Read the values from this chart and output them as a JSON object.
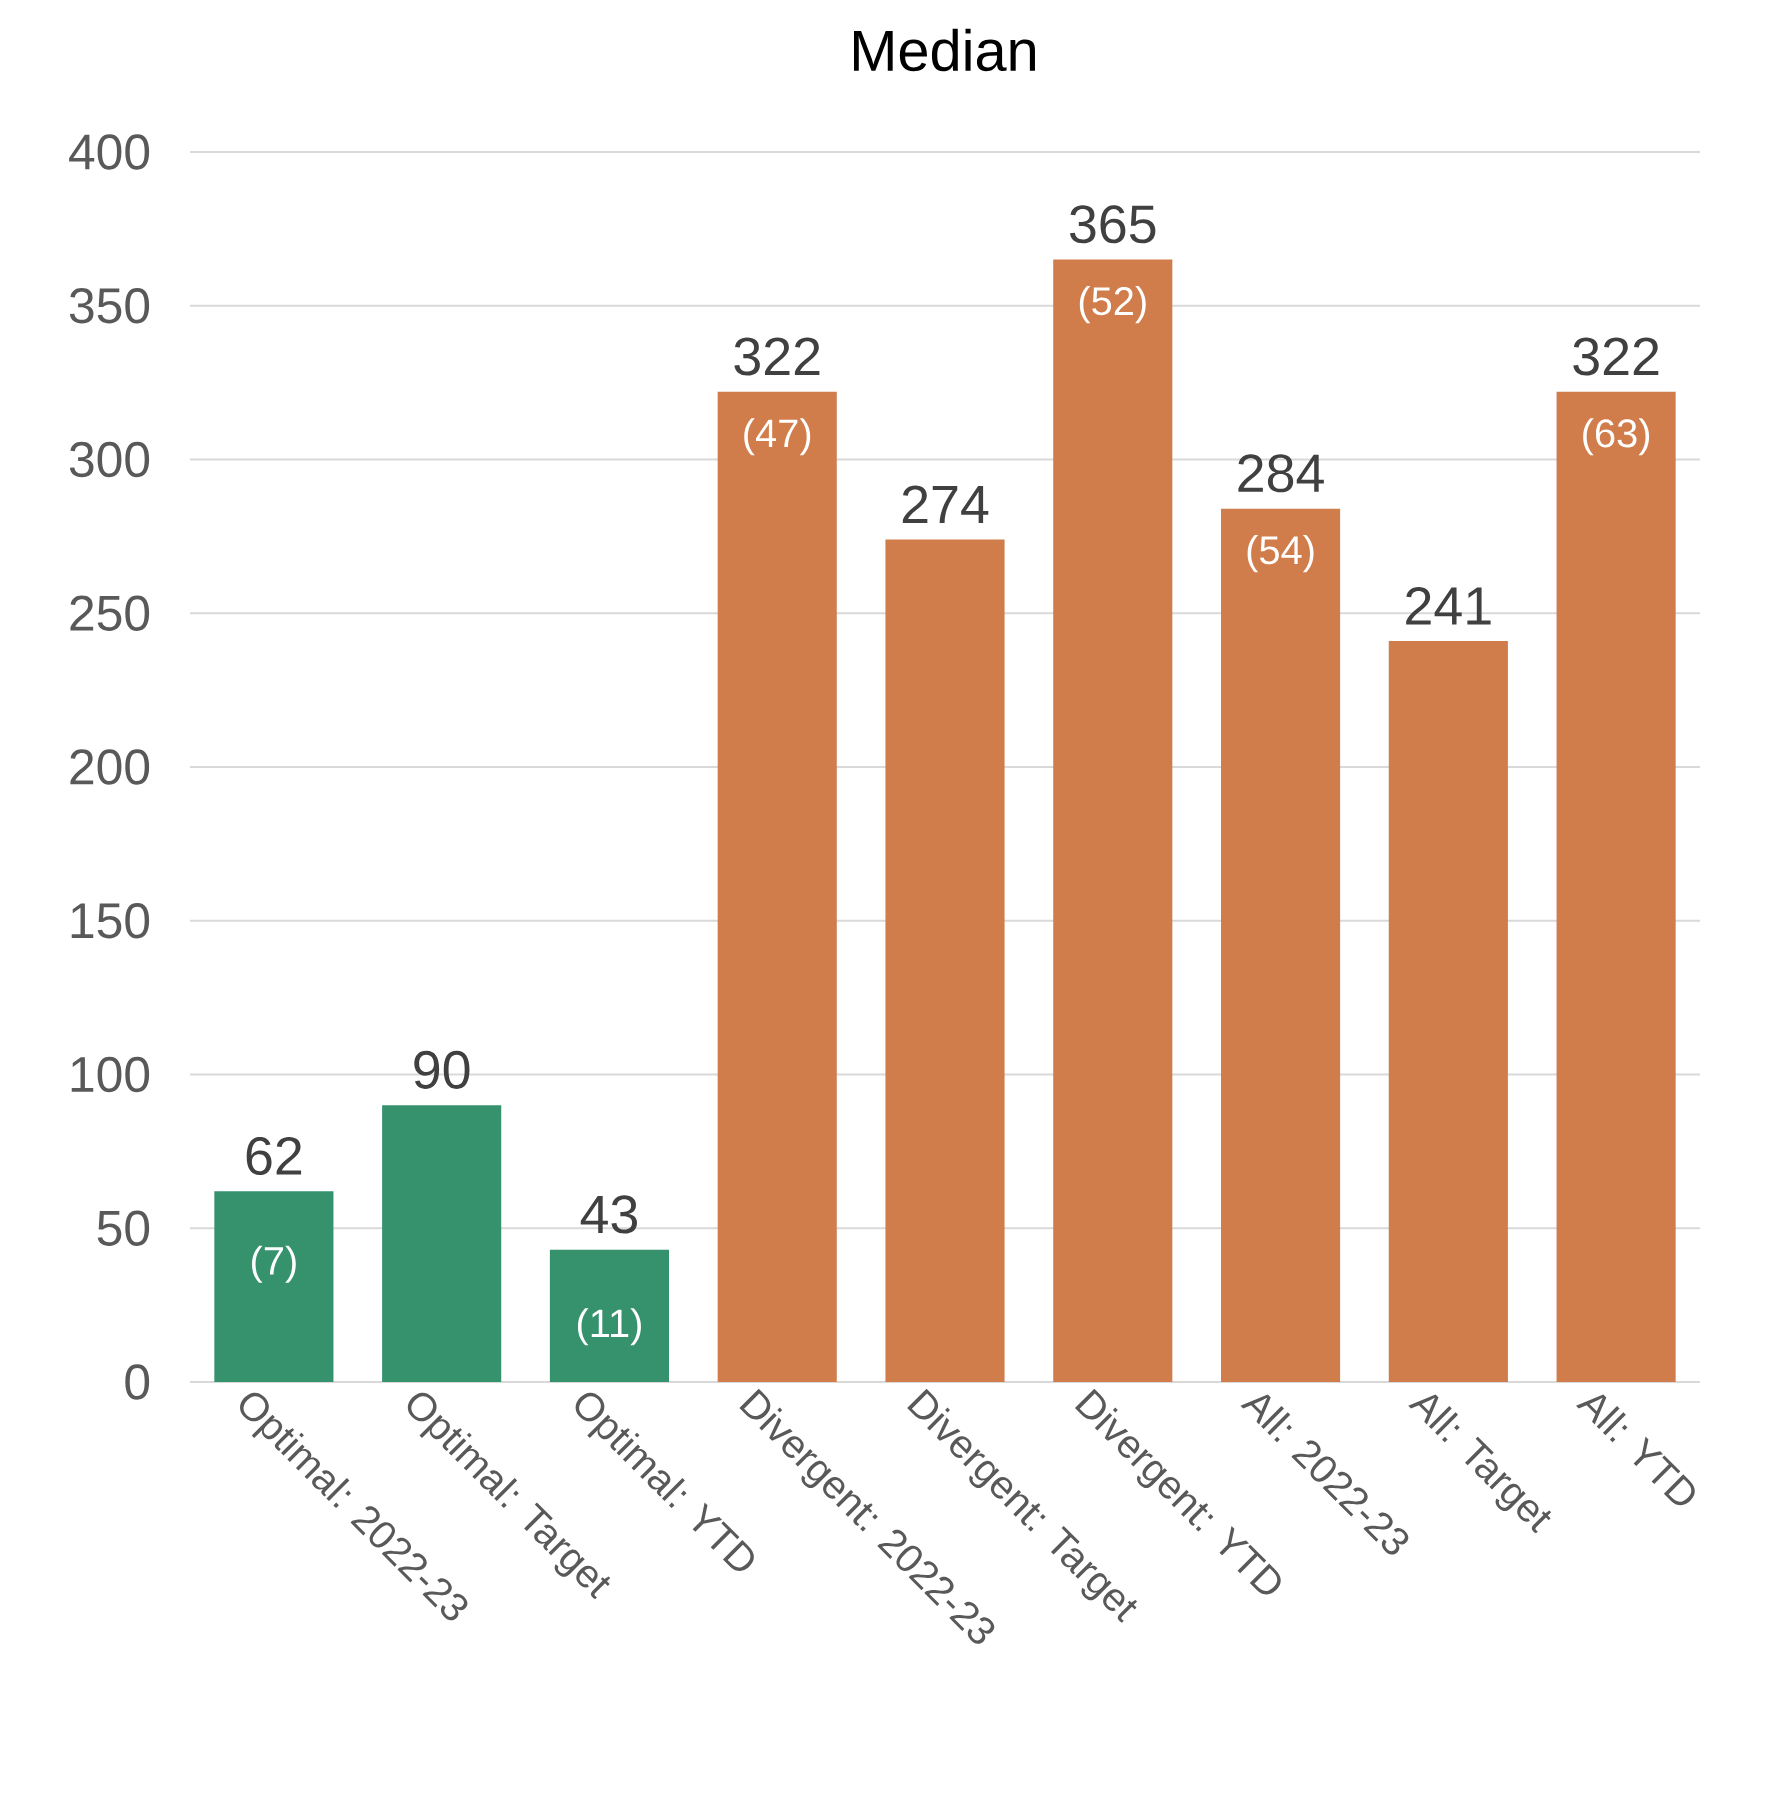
{
  "chart_data": {
    "type": "bar",
    "title": "Median",
    "categories": [
      "Optimal: 2022-23",
      "Optimal: Target",
      "Optimal: YTD",
      "Divergent: 2022-23",
      "Divergent: Target",
      "Divergent: YTD",
      "All: 2022-23",
      "All: Target",
      "All: YTD"
    ],
    "values": [
      62,
      90,
      43,
      322,
      274,
      365,
      284,
      241,
      322
    ],
    "colors": [
      "#36916d",
      "#36916d",
      "#36916d",
      "#d07c4b",
      "#d07c4b",
      "#d07c4b",
      "#d07c4b",
      "#d07c4b",
      "#d07c4b"
    ],
    "data_labels": true,
    "ylim": [
      0,
      400
    ],
    "yticks": [
      0,
      50,
      100,
      150,
      200,
      250,
      300,
      350,
      400
    ],
    "grid": "y",
    "annotations": [
      "(7)",
      "(11)",
      "(47)",
      "(52)",
      "(54)",
      "(63)"
    ]
  }
}
